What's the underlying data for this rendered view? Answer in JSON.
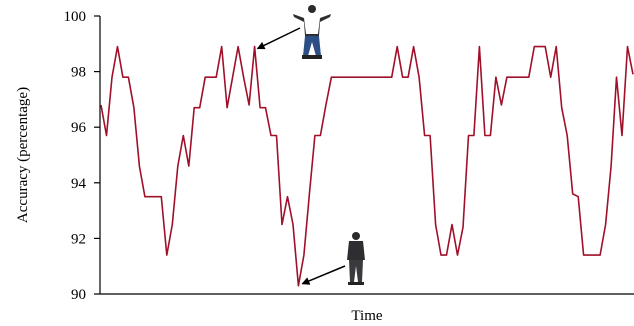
{
  "chart_data": {
    "type": "line",
    "xlabel": "Time",
    "ylabel": "Accuracy  (percentage)",
    "ylim": [
      90,
      100
    ],
    "yticks": [
      90,
      92,
      94,
      96,
      98,
      100
    ],
    "ytick_labels": [
      "90",
      "92",
      "94",
      "96",
      "98",
      "100"
    ],
    "grid": false,
    "line_color": "#a0102a",
    "series": [
      {
        "values": [
          96.8,
          95.7,
          97.8,
          98.9,
          97.8,
          97.8,
          96.7,
          94.6,
          93.5,
          93.5,
          93.5,
          93.5,
          91.4,
          92.5,
          94.6,
          95.7,
          94.6,
          96.7,
          96.7,
          97.8,
          97.8,
          97.8,
          98.9,
          96.7,
          97.8,
          98.9,
          97.8,
          96.8,
          98.9,
          96.7,
          96.7,
          95.7,
          95.7,
          92.5,
          93.5,
          92.5,
          90.3,
          91.4,
          93.6,
          95.7,
          95.7,
          96.8,
          97.8,
          97.8,
          97.8,
          97.8,
          97.8,
          97.8,
          97.8,
          97.8,
          97.8,
          97.8,
          97.8,
          97.8,
          98.9,
          97.8,
          97.8,
          98.9,
          97.8,
          95.7,
          95.7,
          92.5,
          91.4,
          91.4,
          92.5,
          91.4,
          92.4,
          95.7,
          95.7,
          98.9,
          95.7,
          95.7,
          97.8,
          96.8,
          97.8,
          97.8,
          97.8,
          97.8,
          97.8,
          98.9,
          98.9,
          98.9,
          97.8,
          98.9,
          96.7,
          95.7,
          93.6,
          93.5,
          91.4,
          91.4,
          91.4,
          91.4,
          92.5,
          94.6,
          97.8,
          95.7,
          98.9,
          97.9
        ]
      }
    ],
    "annotations": [
      {
        "figure": "person-arms-raised",
        "points_to_index": 28
      },
      {
        "figure": "person-walking",
        "points_to_index": 36
      }
    ]
  }
}
